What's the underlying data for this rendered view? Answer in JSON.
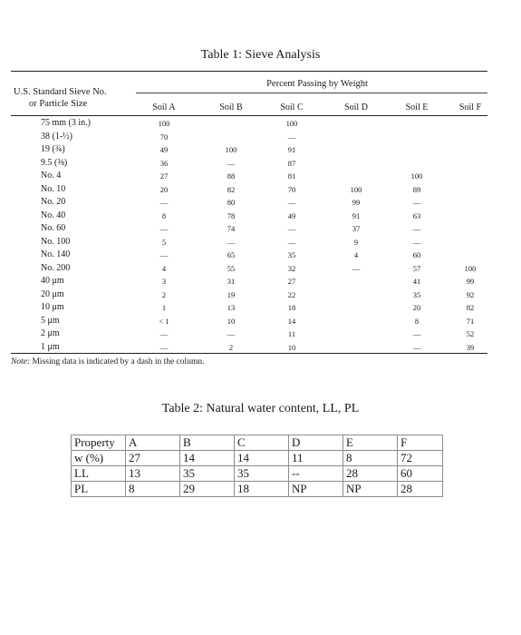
{
  "table1": {
    "title": "Table 1: Sieve Analysis",
    "header_left_line1": "U.S. Standard Sieve No.",
    "header_left_line2": "or Particle Size",
    "percent_passing_header": "Percent Passing by Weight",
    "soils": [
      "Soil A",
      "Soil B",
      "Soil C",
      "Soil D",
      "Soil E",
      "Soil F"
    ],
    "rows": [
      {
        "label": "75 mm (3 in.)",
        "values": [
          "100",
          "",
          "100",
          "",
          "",
          ""
        ]
      },
      {
        "label": "38 (1-½)",
        "values": [
          "70",
          "",
          "—",
          "",
          "",
          ""
        ]
      },
      {
        "label": "19 (¾)",
        "values": [
          "49",
          "100",
          "91",
          "",
          "",
          ""
        ]
      },
      {
        "label": "9.5 (⅜)",
        "values": [
          "36",
          "—",
          "87",
          "",
          "",
          ""
        ]
      },
      {
        "label": "No. 4",
        "values": [
          "27",
          "88",
          "81",
          "",
          "100",
          ""
        ]
      },
      {
        "label": "No. 10",
        "values": [
          "20",
          "82",
          "70",
          "100",
          "89",
          ""
        ]
      },
      {
        "label": "No. 20",
        "values": [
          "—",
          "80",
          "—",
          "99",
          "—",
          ""
        ]
      },
      {
        "label": "No. 40",
        "values": [
          "8",
          "78",
          "49",
          "91",
          "63",
          ""
        ]
      },
      {
        "label": "No. 60",
        "values": [
          "—",
          "74",
          "—",
          "37",
          "—",
          ""
        ]
      },
      {
        "label": "No. 100",
        "values": [
          "5",
          "—",
          "—",
          "9",
          "—",
          ""
        ]
      },
      {
        "label": "No. 140",
        "values": [
          "—",
          "65",
          "35",
          "4",
          "60",
          ""
        ]
      },
      {
        "label": "No. 200",
        "values": [
          "4",
          "55",
          "32",
          "—",
          "57",
          "100"
        ]
      },
      {
        "label": "40 μm",
        "values": [
          "3",
          "31",
          "27",
          "",
          "41",
          "99"
        ]
      },
      {
        "label": "20 μm",
        "values": [
          "2",
          "19",
          "22",
          "",
          "35",
          "92"
        ]
      },
      {
        "label": "10 μm",
        "values": [
          "1",
          "13",
          "18",
          "",
          "20",
          "82"
        ]
      },
      {
        "label": "5 μm",
        "values": [
          "< 1",
          "10",
          "14",
          "",
          "8",
          "71"
        ]
      },
      {
        "label": "2 μm",
        "values": [
          "—",
          "—",
          "11",
          "",
          "—",
          "52"
        ]
      },
      {
        "label": "1 μm",
        "values": [
          "—",
          "2",
          "10",
          "",
          "—",
          "39"
        ]
      }
    ],
    "note_italic": "Note:",
    "note_text": " Missing data is indicated by a dash in the column."
  },
  "table2": {
    "title": "Table 2: Natural water content, LL, PL",
    "rows": [
      [
        "Property",
        "A",
        "B",
        "C",
        "D",
        "E",
        "F"
      ],
      [
        "w (%)",
        "27",
        "14",
        "14",
        "11",
        "8",
        "72"
      ],
      [
        "LL",
        "13",
        "35",
        "35",
        "--",
        "28",
        "60"
      ],
      [
        "PL",
        "8",
        "29",
        "18",
        "NP",
        "NP",
        "28"
      ]
    ]
  }
}
